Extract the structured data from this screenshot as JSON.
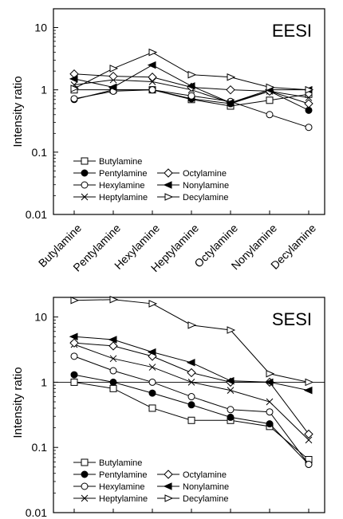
{
  "chart_data": [
    {
      "type": "line",
      "title": "EESI",
      "ylabel": "Intensity ratio",
      "xlabel": "",
      "yscale": "log",
      "ylim": [
        0.01,
        20
      ],
      "yticks": [
        "10",
        "1",
        "0.1",
        "0.01"
      ],
      "categories": [
        "Butylamine",
        "Pentylamine",
        "Hexylamine",
        "Heptylamine",
        "Octylamine",
        "Nonylamine",
        "Decylamine"
      ],
      "series": [
        {
          "name": "Butylamine",
          "marker": "square-open",
          "values": [
            1.0,
            1.0,
            1.0,
            0.7,
            0.55,
            0.68,
            0.85
          ]
        },
        {
          "name": "Pentylamine",
          "marker": "circle-filled",
          "values": [
            0.7,
            1.0,
            1.0,
            0.72,
            0.6,
            0.95,
            0.47
          ]
        },
        {
          "name": "Hexylamine",
          "marker": "circle-open",
          "values": [
            0.72,
            0.95,
            1.0,
            0.8,
            0.65,
            0.4,
            0.25
          ]
        },
        {
          "name": "Heptylamine",
          "marker": "x",
          "values": [
            1.2,
            1.45,
            1.35,
            1.0,
            0.62,
            0.95,
            0.75
          ]
        },
        {
          "name": "Octylamine",
          "marker": "diamond-open",
          "values": [
            1.8,
            1.65,
            1.6,
            1.1,
            1.0,
            0.95,
            0.6
          ]
        },
        {
          "name": "Nonylamine",
          "marker": "triangle-left-filled",
          "values": [
            1.5,
            1.1,
            2.5,
            1.15,
            0.62,
            1.0,
            1.0
          ]
        },
        {
          "name": "Decylamine",
          "marker": "triangle-right-open",
          "values": [
            1.05,
            2.2,
            4.0,
            1.75,
            1.6,
            1.1,
            1.0
          ]
        }
      ]
    },
    {
      "type": "line",
      "title": "SESI",
      "ylabel": "Intensity ratio",
      "xlabel": "",
      "yscale": "log",
      "ylim": [
        0.01,
        20
      ],
      "yticks": [
        "10",
        "1",
        "0.1",
        "0.01"
      ],
      "categories": [
        "Butylamine",
        "Pentylamine",
        "Hexylamine",
        "Heptylamine",
        "Octylamine",
        "Nonylamine",
        "Decylamine"
      ],
      "series": [
        {
          "name": "Butylamine",
          "marker": "square-open",
          "values": [
            1.0,
            0.8,
            0.4,
            0.26,
            0.26,
            0.21,
            0.065
          ]
        },
        {
          "name": "Pentylamine",
          "marker": "circle-filled",
          "values": [
            1.3,
            1.0,
            0.68,
            0.45,
            0.29,
            0.23,
            0.055
          ]
        },
        {
          "name": "Hexylamine",
          "marker": "circle-open",
          "values": [
            2.5,
            1.5,
            1.0,
            0.6,
            0.38,
            0.35,
            0.055
          ]
        },
        {
          "name": "Heptylamine",
          "marker": "x",
          "values": [
            3.8,
            2.3,
            1.7,
            1.0,
            0.75,
            0.5,
            0.13
          ]
        },
        {
          "name": "Octylamine",
          "marker": "diamond-open",
          "values": [
            4.0,
            3.6,
            2.5,
            1.4,
            1.0,
            1.0,
            0.16
          ]
        },
        {
          "name": "Nonylamine",
          "marker": "triangle-left-filled",
          "values": [
            5.0,
            4.5,
            2.9,
            2.0,
            1.05,
            1.0,
            0.75
          ]
        },
        {
          "name": "Decylamine",
          "marker": "triangle-right-open",
          "values": [
            18.0,
            18.5,
            16.0,
            7.5,
            6.3,
            1.35,
            1.0
          ]
        }
      ],
      "reference_line": 1
    }
  ]
}
